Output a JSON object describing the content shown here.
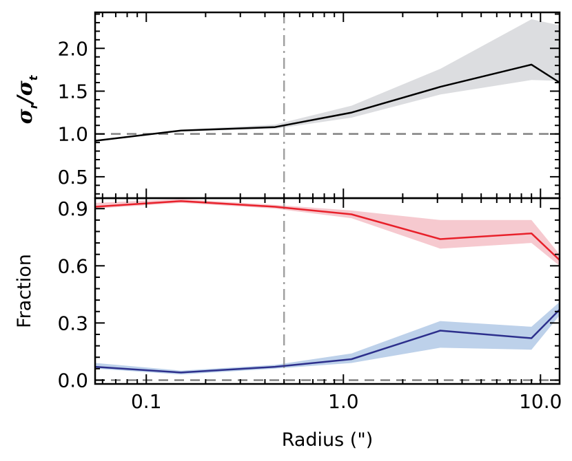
{
  "chart_data": [
    {
      "type": "line",
      "panel": "top",
      "ylabel_parts": {
        "numerator": "σ",
        "numerator_sub": "r",
        "slash": "/",
        "denominator": "σ",
        "denominator_sub": "t"
      },
      "xscale": "log",
      "xlim": [
        0.055,
        12.5
      ],
      "ylim": [
        0.25,
        2.42
      ],
      "yticks": [
        0.5,
        1.0,
        1.5,
        2.0
      ],
      "ytick_labels": [
        "0.5",
        "1.0",
        "1.5",
        "2.0"
      ],
      "series": [
        {
          "name": "sigma_ratio",
          "color": "#000000",
          "band_color": "#dcdde0",
          "x": [
            0.055,
            0.15,
            0.45,
            1.1,
            3.1,
            9.0,
            12.5
          ],
          "y": [
            0.92,
            1.04,
            1.08,
            1.25,
            1.55,
            1.81,
            1.6
          ],
          "y_low": [
            0.91,
            1.03,
            1.06,
            1.19,
            1.46,
            1.63,
            1.62
          ],
          "y_high": [
            0.93,
            1.05,
            1.11,
            1.33,
            1.76,
            2.34,
            2.27
          ]
        }
      ],
      "reference_lines": [
        {
          "axis": "y",
          "value": 1.0,
          "style": "dashed",
          "color": "#808080"
        },
        {
          "axis": "x",
          "value": 0.5,
          "style": "dash-dot",
          "color": "#a0a0a0"
        }
      ]
    },
    {
      "type": "line",
      "panel": "bottom",
      "ylabel": "Fraction",
      "xlabel": "Radius (\")",
      "xscale": "log",
      "xlim": [
        0.055,
        12.5
      ],
      "ylim": [
        -0.02,
        0.955
      ],
      "yticks": [
        0.0,
        0.3,
        0.6,
        0.9
      ],
      "ytick_labels": [
        "0.0",
        "0.3",
        "0.6",
        "0.9"
      ],
      "xticks": [
        0.1,
        1.0,
        10.0
      ],
      "xtick_labels": [
        "0.1",
        "1.0",
        "10.0"
      ],
      "series": [
        {
          "name": "red_fraction",
          "color": "#e8202a",
          "band_color": "#f6c9cf",
          "x": [
            0.055,
            0.15,
            0.45,
            1.1,
            3.1,
            9.0,
            12.5
          ],
          "y": [
            0.91,
            0.94,
            0.91,
            0.87,
            0.74,
            0.77,
            0.63
          ],
          "y_low": [
            0.9,
            0.93,
            0.9,
            0.85,
            0.69,
            0.72,
            0.6
          ],
          "y_high": [
            0.93,
            0.95,
            0.92,
            0.89,
            0.84,
            0.84,
            0.66
          ]
        },
        {
          "name": "blue_fraction",
          "color": "#2c2f8c",
          "band_color": "#bdd1ea",
          "x": [
            0.055,
            0.15,
            0.45,
            1.1,
            3.1,
            9.0,
            12.5
          ],
          "y": [
            0.07,
            0.04,
            0.07,
            0.11,
            0.26,
            0.22,
            0.37
          ],
          "y_low": [
            0.06,
            0.03,
            0.06,
            0.09,
            0.17,
            0.16,
            0.34
          ],
          "y_high": [
            0.09,
            0.05,
            0.08,
            0.14,
            0.31,
            0.28,
            0.41
          ]
        }
      ],
      "reference_lines": [
        {
          "axis": "y",
          "value": 0.0,
          "style": "dashed",
          "color": "#808080"
        },
        {
          "axis": "x",
          "value": 0.5,
          "style": "dash-dot",
          "color": "#a0a0a0"
        }
      ]
    }
  ]
}
